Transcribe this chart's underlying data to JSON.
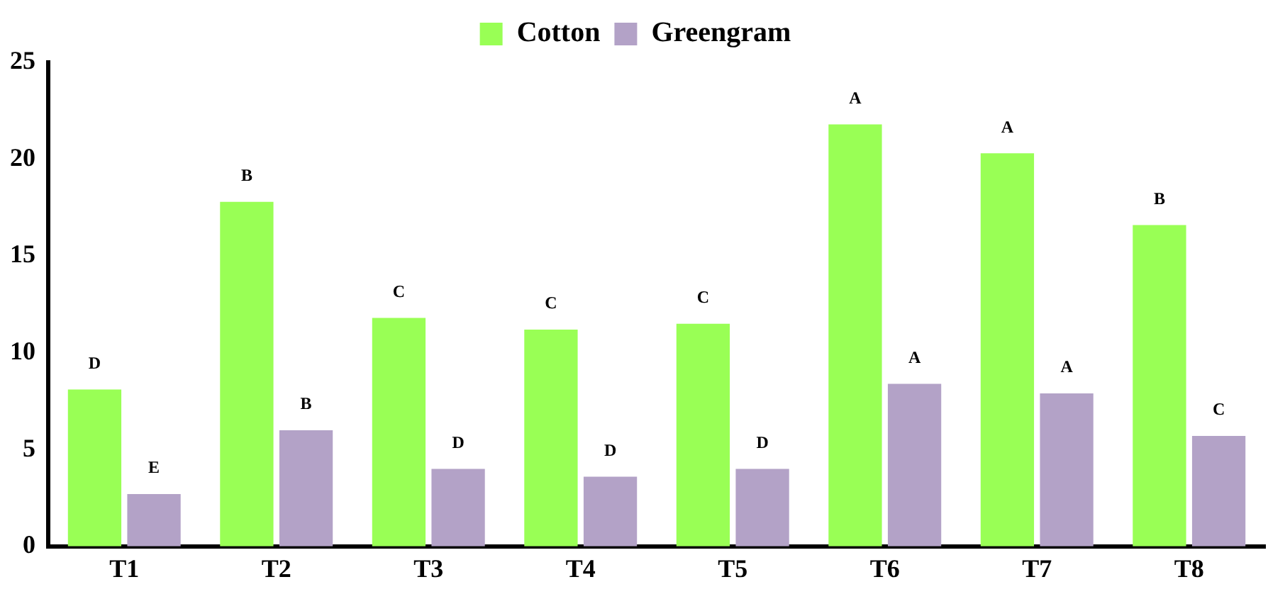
{
  "chart_data": {
    "type": "bar",
    "categories": [
      "T1",
      "T2",
      "T3",
      "T4",
      "T5",
      "T6",
      "T7",
      "T8"
    ],
    "series": [
      {
        "name": "Cotton",
        "color": "#99ff55",
        "values": [
          8.1,
          17.8,
          11.8,
          11.2,
          11.5,
          21.8,
          20.3,
          16.6
        ],
        "value_labels": [
          "D",
          "B",
          "C",
          "C",
          "C",
          "A",
          "A",
          "B"
        ]
      },
      {
        "name": "Greengram",
        "color": "#b3a2c7",
        "values": [
          2.7,
          6.0,
          4.0,
          3.6,
          4.0,
          8.4,
          7.9,
          5.7
        ],
        "value_labels": [
          "E",
          "B",
          "D",
          "D",
          "D",
          "A",
          "A",
          "C"
        ]
      }
    ],
    "ylim": [
      0,
      25
    ],
    "yticks": [
      0,
      5,
      10,
      15,
      20,
      25
    ],
    "grid": false,
    "legend": "top"
  }
}
